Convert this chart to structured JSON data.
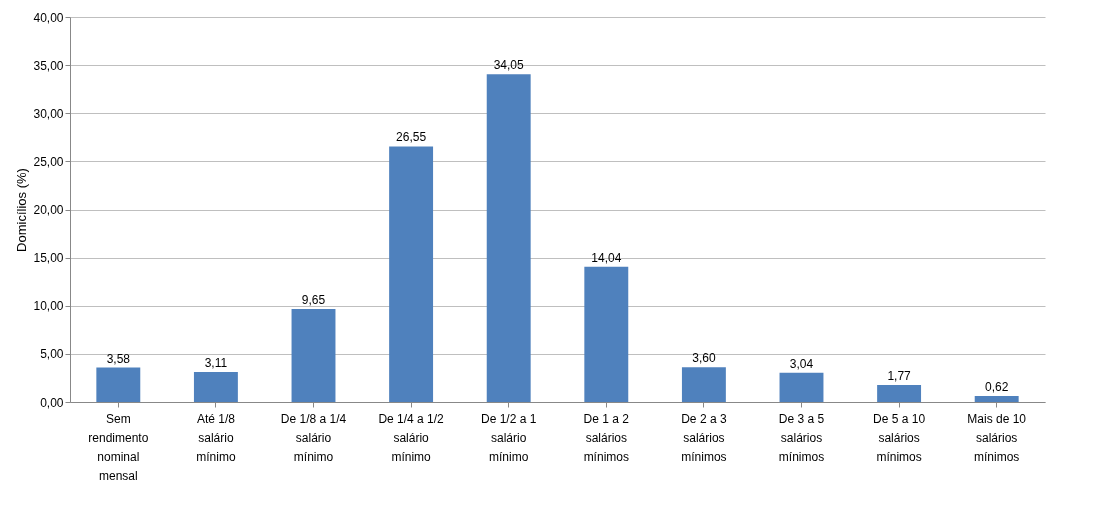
{
  "chart_data": {
    "type": "bar",
    "ylabel": "Domicílios (%)",
    "categories": [
      "Sem rendimento nominal mensal",
      "Até 1/8 salário mínimo",
      "De 1/8 a 1/4 salário mínimo",
      "De 1/4 a 1/2 salário mínimo",
      "De 1/2 a 1 salário mínimo",
      "De 1 a 2 salários mínimos",
      "De 2 a 3 salários mínimos",
      "De 3 a 5 salários mínimos",
      "De 5 a 10 salários mínimos",
      "Mais de 10 salários mínimos"
    ],
    "values": [
      3.58,
      3.11,
      9.65,
      26.55,
      34.05,
      14.04,
      3.6,
      3.04,
      1.77,
      0.62
    ],
    "value_labels": [
      "3,58",
      "3,11",
      "9,65",
      "26,55",
      "34,05",
      "14,04",
      "3,60",
      "3,04",
      "1,77",
      "0,62"
    ],
    "color": "#4f81bd",
    "ylim": [
      0,
      40
    ],
    "yticks": [
      {
        "value": 0,
        "label": "0,00"
      },
      {
        "value": 5,
        "label": "5,00"
      },
      {
        "value": 10,
        "label": "10,00"
      },
      {
        "value": 15,
        "label": "15,00"
      },
      {
        "value": 20,
        "label": "20,00"
      },
      {
        "value": 25,
        "label": "25,00"
      },
      {
        "value": 30,
        "label": "30,00"
      },
      {
        "value": 35,
        "label": "35,00"
      },
      {
        "value": 40,
        "label": "40,00"
      }
    ],
    "grid": "y"
  }
}
